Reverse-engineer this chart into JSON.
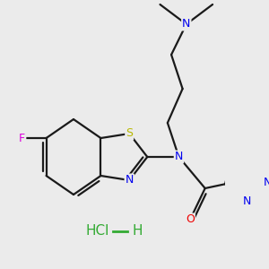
{
  "background_color": "#ebebeb",
  "bond_color": "#1a1a1a",
  "atom_colors": {
    "N": "#0000ee",
    "O": "#ee0000",
    "S": "#b8b800",
    "F": "#dd00dd",
    "C": "#1a1a1a",
    "Cl": "#33aa33",
    "H": "#1a1a1a"
  },
  "hcl_color": "#33aa33",
  "hcl_fontsize": 11,
  "bond_lw": 1.6
}
